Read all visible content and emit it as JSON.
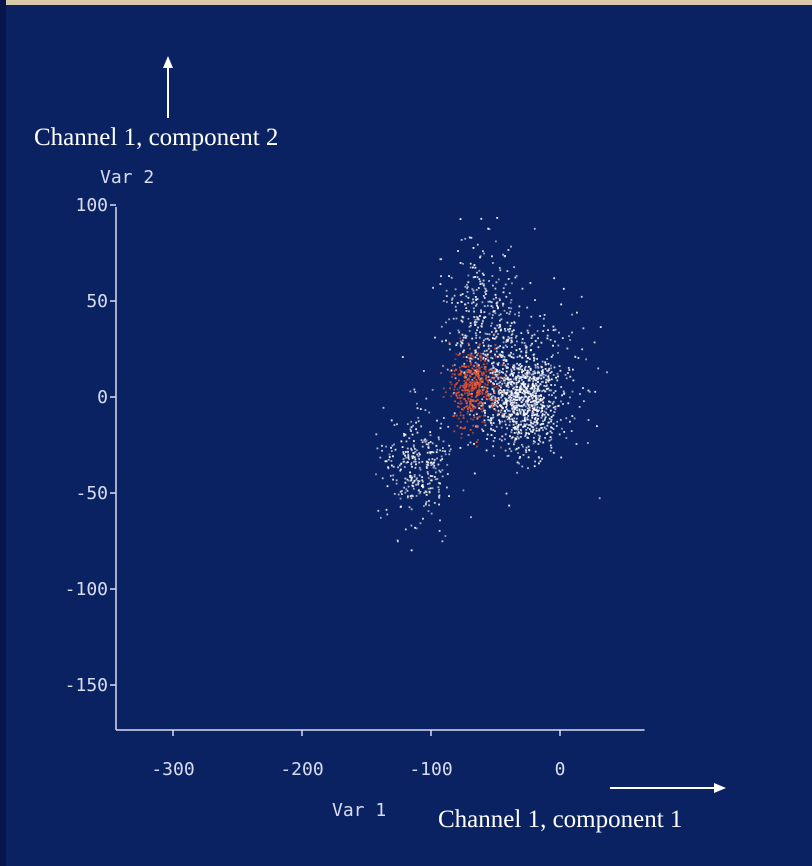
{
  "chart_data": {
    "type": "scatter",
    "title": "",
    "xlabel": "Var 1",
    "ylabel": "Var 2",
    "x_outer_label": "Channel 1, component 1",
    "y_outer_label": "Channel 1, component 2",
    "xlim": [
      -350,
      50
    ],
    "ylim": [
      -175,
      100
    ],
    "x_ticks": [
      -300,
      -200,
      -100,
      0
    ],
    "y_ticks": [
      100,
      50,
      0,
      -50,
      -100,
      -150
    ],
    "x_tick_labels": [
      "-300",
      "-200",
      "-100",
      "0"
    ],
    "y_tick_labels": [
      "100",
      "50",
      "0",
      "-50",
      "-100",
      "-150"
    ],
    "grid": false,
    "background_color": "#0b2262",
    "series": [
      {
        "color": "#ffffff",
        "clusters": [
          {
            "center": [
              -30,
              0
            ],
            "spread": [
              14,
              13
            ],
            "count": 900
          },
          {
            "center": [
              -60,
              40
            ],
            "spread": [
              16,
              20
            ],
            "count": 350
          },
          {
            "center": [
              -110,
              -35
            ],
            "spread": [
              14,
              15
            ],
            "count": 320
          },
          {
            "center": [
              -25,
              10
            ],
            "spread": [
              28,
              22
            ],
            "count": 300
          }
        ]
      },
      {
        "color": "#e8542a",
        "clusters": [
          {
            "center": [
              -68,
              5
            ],
            "spread": [
              9,
              10
            ],
            "count": 420
          }
        ]
      }
    ]
  }
}
